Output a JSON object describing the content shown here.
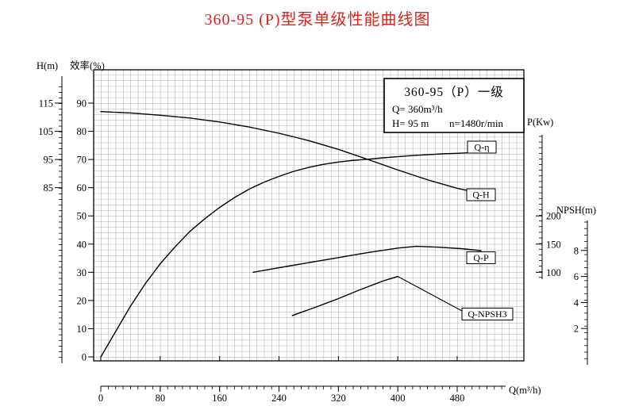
{
  "title": "360-95 (P)型泵单级性能曲线图",
  "info_box": {
    "line1": "360-95（P）一级",
    "line2": "Q= 360m³/h",
    "line3a": "H= 95 m",
    "line3b": "n=1480r/min"
  },
  "axes": {
    "h": {
      "label": "H(m)",
      "ticks": [
        115,
        105,
        95,
        85
      ]
    },
    "eff": {
      "label": "效率(%)",
      "ticks": [
        90,
        80,
        70,
        60,
        50,
        40,
        30,
        20,
        10,
        0
      ]
    },
    "p": {
      "label": "P(Kw)",
      "ticks": [
        200,
        150,
        100
      ]
    },
    "npsh": {
      "label": "NPSH(m)",
      "ticks": [
        8,
        6,
        4,
        2
      ]
    },
    "q": {
      "label": "Q(m³/h)",
      "ticks": [
        0,
        80,
        160,
        240,
        320,
        400,
        480
      ]
    }
  },
  "chart_data": {
    "type": "line",
    "title": "360-95 (P) pump single-stage performance curves",
    "x_axis": {
      "label": "Q (m³/h)",
      "range": [
        0,
        570
      ]
    },
    "grid": true,
    "series": [
      {
        "id": "eta",
        "label": "Q-η",
        "y_axis": "efficiency (%)",
        "points": [
          [
            0,
            0
          ],
          [
            20,
            9
          ],
          [
            40,
            18
          ],
          [
            60,
            26
          ],
          [
            80,
            33
          ],
          [
            100,
            39
          ],
          [
            120,
            44.5
          ],
          [
            140,
            49
          ],
          [
            160,
            53
          ],
          [
            180,
            56.5
          ],
          [
            200,
            59.5
          ],
          [
            220,
            62
          ],
          [
            240,
            64
          ],
          [
            260,
            65.8
          ],
          [
            280,
            67.2
          ],
          [
            300,
            68.3
          ],
          [
            320,
            69.1
          ],
          [
            340,
            69.7
          ],
          [
            360,
            70.1
          ],
          [
            380,
            70.6
          ],
          [
            400,
            71
          ],
          [
            420,
            71.4
          ],
          [
            440,
            71.7
          ],
          [
            460,
            72
          ],
          [
            480,
            72.2
          ],
          [
            505,
            72.5
          ]
        ]
      },
      {
        "id": "h",
        "label": "Q-H",
        "y_axis": "head (m)",
        "points": [
          [
            0,
            112
          ],
          [
            40,
            111.5
          ],
          [
            80,
            110.7
          ],
          [
            120,
            109.7
          ],
          [
            160,
            108.3
          ],
          [
            200,
            106.5
          ],
          [
            240,
            104.3
          ],
          [
            280,
            101.7
          ],
          [
            320,
            98.6
          ],
          [
            360,
            95
          ],
          [
            400,
            91.3
          ],
          [
            440,
            87.8
          ],
          [
            480,
            84.8
          ],
          [
            512,
            83
          ]
        ]
      },
      {
        "id": "p",
        "label": "Q-P",
        "y_axis": "power (kW)",
        "points": [
          [
            205,
            100
          ],
          [
            240,
            108
          ],
          [
            280,
            117
          ],
          [
            320,
            126
          ],
          [
            360,
            135
          ],
          [
            400,
            143
          ],
          [
            425,
            146
          ],
          [
            455,
            144.5
          ],
          [
            485,
            142
          ],
          [
            512,
            138.5
          ]
        ]
      },
      {
        "id": "npsh",
        "label": "Q-NPSH3",
        "y_axis": "NPSH (m)",
        "points": [
          [
            258,
            3
          ],
          [
            290,
            3.65
          ],
          [
            320,
            4.3
          ],
          [
            350,
            5
          ],
          [
            380,
            5.65
          ],
          [
            400,
            6
          ]
        ]
      }
    ],
    "design_point": {
      "Q": "360m³/h",
      "H": "95 m",
      "n": "1480r/min"
    }
  }
}
